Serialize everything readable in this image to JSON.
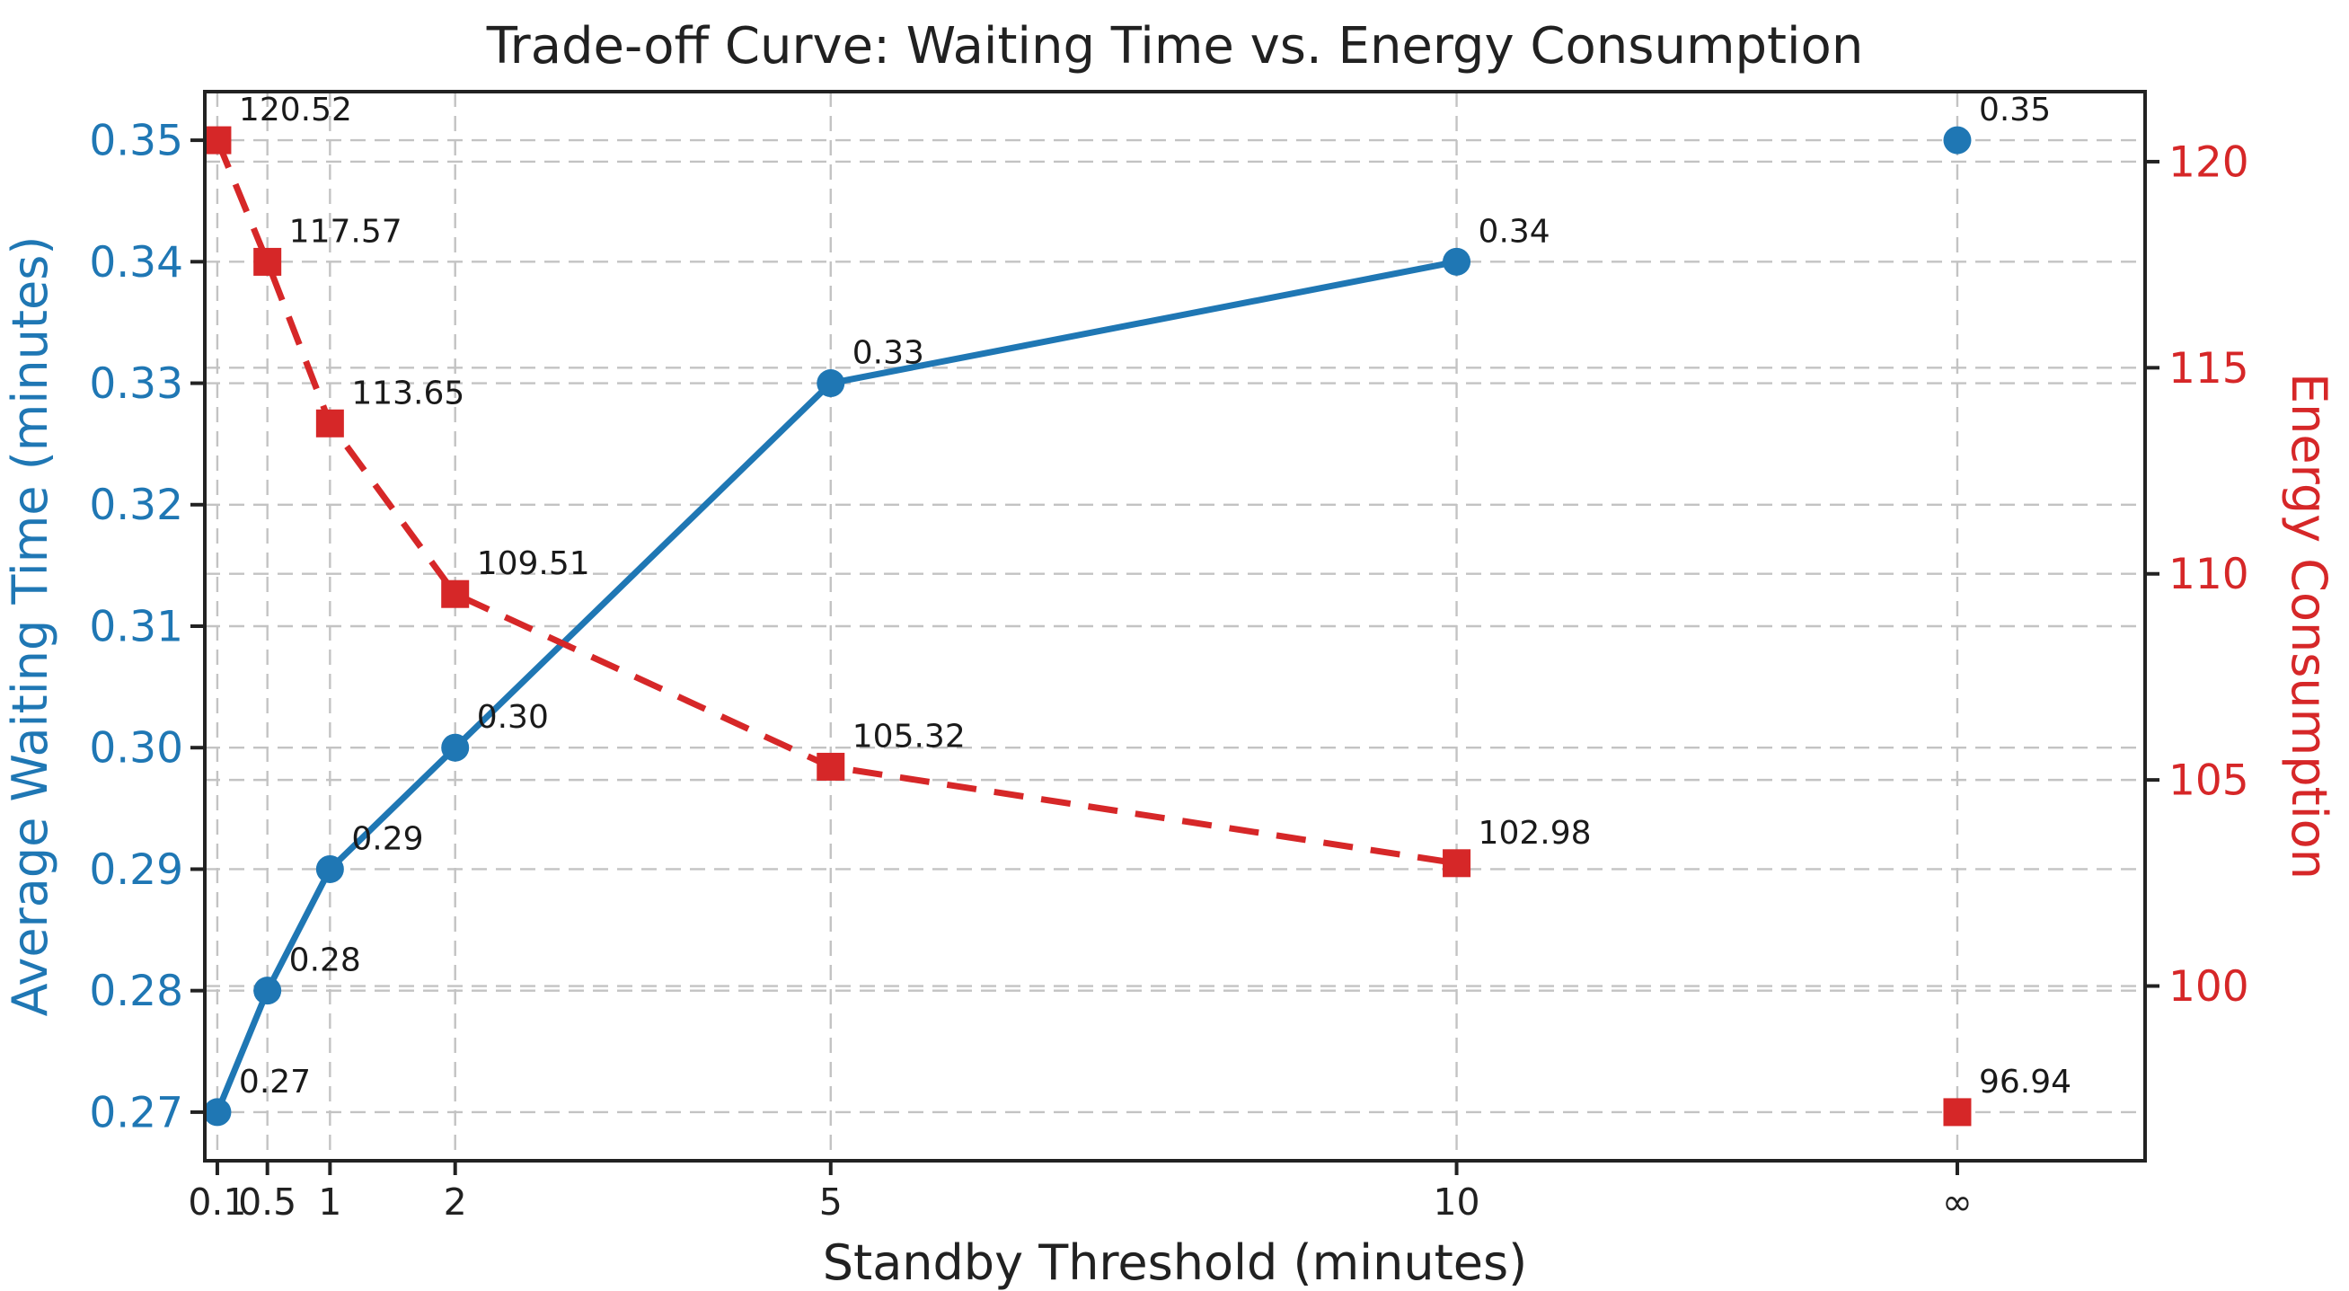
{
  "chart_data": {
    "type": "line",
    "title": "Trade-off Curve: Waiting Time vs. Energy Consumption",
    "xlabel": "Standby Threshold (minutes)",
    "x_categories": [
      "0.1",
      "0.5",
      "1",
      "2",
      "5",
      "10",
      "∞"
    ],
    "x_positions": [
      0.1,
      0.5,
      1,
      2,
      5,
      10,
      14
    ],
    "xlim": [
      0,
      15.5
    ],
    "grid": true,
    "grid_style": "dashed",
    "grid_color": "#c3c3c3",
    "background": "#ffffff",
    "annotation_color": "#1a1a1a",
    "frame_color": "#222222",
    "axes": {
      "left": {
        "label": "Average Waiting Time (minutes)",
        "color": "#1f77b4",
        "ticks": [
          0.27,
          0.28,
          0.29,
          0.3,
          0.31,
          0.32,
          0.33,
          0.34,
          0.35
        ],
        "tick_labels": [
          "0.27",
          "0.28",
          "0.29",
          "0.30",
          "0.31",
          "0.32",
          "0.33",
          "0.34",
          "0.35"
        ],
        "lim": [
          0.266,
          0.354
        ]
      },
      "right": {
        "label": "Energy Consumption",
        "color": "#d62728",
        "ticks": [
          100,
          105,
          110,
          115,
          120
        ],
        "tick_labels": [
          "100",
          "105",
          "110",
          "115",
          "120"
        ],
        "lim": [
          95.761,
          121.699
        ]
      }
    },
    "series": [
      {
        "name": "Average Waiting Time (minutes)",
        "axis": "left",
        "color": "#1f77b4",
        "marker": "circle",
        "line": "solid",
        "values": [
          0.27,
          0.28,
          0.29,
          0.3,
          0.33,
          0.34,
          0.35
        ],
        "point_labels": [
          "0.27",
          "0.28",
          "0.29",
          "0.30",
          "0.33",
          "0.34",
          "0.35"
        ],
        "isolated_last_point": true
      },
      {
        "name": "Energy Consumption",
        "axis": "right",
        "color": "#d62728",
        "marker": "square",
        "line": "dashed",
        "values": [
          120.52,
          117.57,
          113.65,
          109.51,
          105.32,
          102.98,
          96.94
        ],
        "point_labels": [
          "120.52",
          "117.57",
          "113.65",
          "109.51",
          "105.32",
          "102.98",
          "96.94"
        ],
        "isolated_last_point": true
      }
    ]
  }
}
